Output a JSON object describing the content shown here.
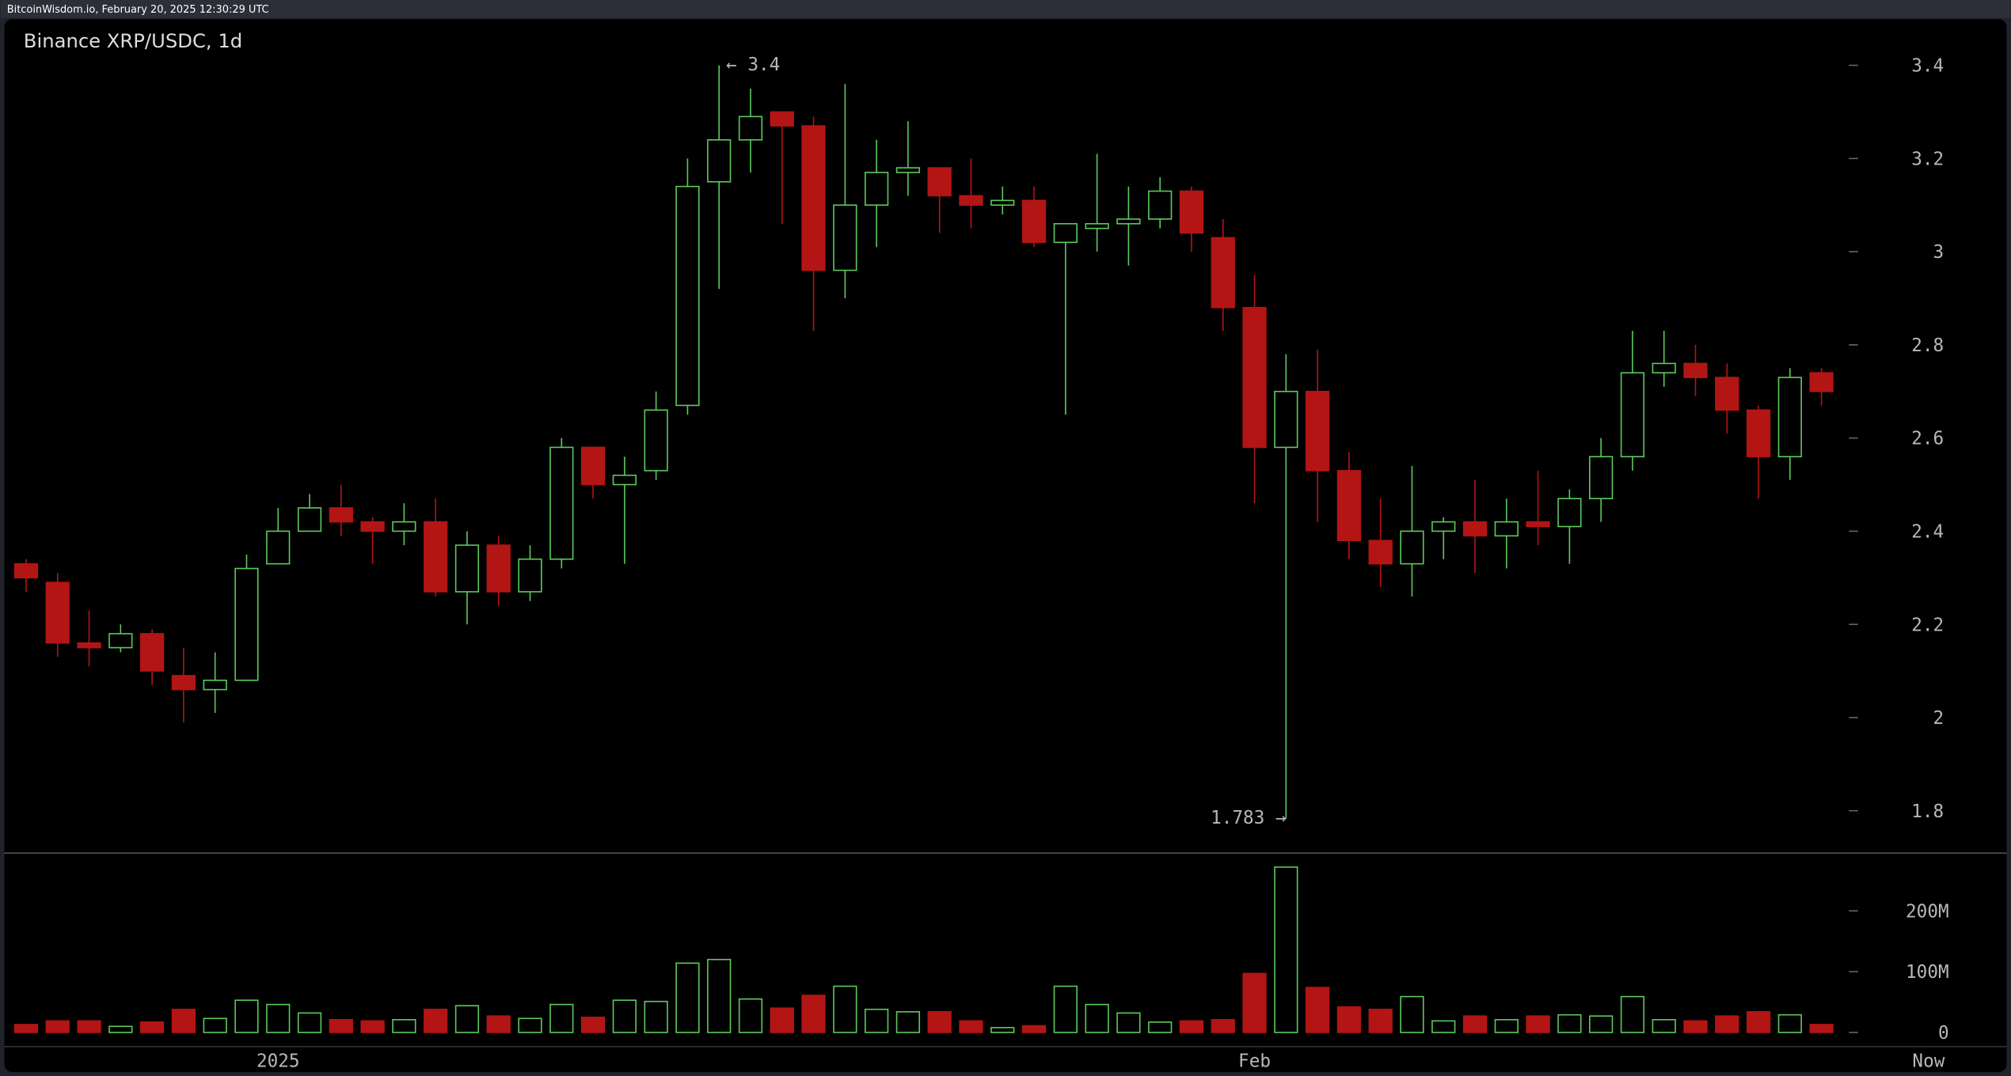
{
  "header": "BitcoinWisdom.io, February 20, 2025 12:30:29 UTC",
  "chart_data": {
    "type": "candlestick",
    "title": "Binance XRP/USDC, 1d",
    "annotations": [
      "← 3.4",
      "1.783 →"
    ],
    "xlim": [
      -0.69,
      63.0
    ],
    "xticks": [
      {
        "value": 8,
        "label": "2025"
      },
      {
        "value": 39,
        "label": "Feb"
      },
      {
        "value": 60.4,
        "label": "Now"
      }
    ],
    "ylim": [
      1.709,
      3.499
    ],
    "yticks": [
      1.8,
      2,
      2.2,
      2.4,
      2.6,
      2.8,
      3,
      3.2,
      3.4
    ],
    "up_color": "#5cc85c",
    "down_color": "#b31515",
    "open": [
      2.33,
      2.29,
      2.16,
      2.15,
      2.18,
      2.09,
      2.06,
      2.08,
      2.33,
      2.4,
      2.45,
      2.42,
      2.4,
      2.42,
      2.27,
      2.37,
      2.27,
      2.34,
      2.58,
      2.5,
      2.53,
      2.67,
      3.15,
      3.24,
      3.3,
      3.27,
      2.96,
      3.1,
      3.17,
      3.18,
      3.12,
      3.1,
      3.11,
      3.02,
      3.05,
      3.06,
      3.07,
      3.13,
      3.03,
      2.88,
      2.58,
      2.7,
      2.53,
      2.38,
      2.33,
      2.4,
      2.42,
      2.39,
      2.42,
      2.41,
      2.47,
      2.56,
      2.74,
      2.76,
      2.73,
      2.66,
      2.56,
      2.74
    ],
    "high": [
      2.34,
      2.31,
      2.23,
      2.2,
      2.19,
      2.15,
      2.14,
      2.35,
      2.45,
      2.48,
      2.5,
      2.43,
      2.46,
      2.47,
      2.4,
      2.39,
      2.37,
      2.6,
      2.58,
      2.56,
      2.7,
      3.2,
      3.4,
      3.35,
      3.3,
      3.29,
      3.36,
      3.24,
      3.28,
      3.18,
      3.2,
      3.14,
      3.14,
      3.06,
      3.21,
      3.14,
      3.16,
      3.14,
      3.07,
      2.95,
      2.78,
      2.79,
      2.57,
      2.47,
      2.54,
      2.43,
      2.51,
      2.47,
      2.53,
      2.49,
      2.6,
      2.83,
      2.83,
      2.8,
      2.76,
      2.67,
      2.75,
      2.75
    ],
    "low": [
      2.27,
      2.13,
      2.11,
      2.14,
      2.07,
      1.99,
      2.01,
      2.08,
      2.33,
      2.4,
      2.39,
      2.33,
      2.37,
      2.26,
      2.2,
      2.24,
      2.25,
      2.32,
      2.47,
      2.33,
      2.51,
      2.65,
      2.92,
      3.17,
      3.06,
      2.83,
      2.9,
      3.01,
      3.12,
      3.04,
      3.05,
      3.08,
      3.01,
      2.65,
      3.0,
      2.97,
      3.05,
      3.0,
      2.83,
      2.46,
      1.783,
      2.42,
      2.34,
      2.28,
      2.26,
      2.34,
      2.31,
      2.32,
      2.37,
      2.33,
      2.42,
      2.53,
      2.71,
      2.69,
      2.61,
      2.47,
      2.51,
      2.67
    ],
    "close": [
      2.3,
      2.16,
      2.15,
      2.18,
      2.1,
      2.06,
      2.08,
      2.32,
      2.4,
      2.45,
      2.42,
      2.4,
      2.42,
      2.27,
      2.37,
      2.27,
      2.34,
      2.58,
      2.5,
      2.52,
      2.66,
      3.14,
      3.24,
      3.29,
      3.27,
      2.96,
      3.1,
      3.17,
      3.18,
      3.12,
      3.1,
      3.11,
      3.02,
      3.06,
      3.06,
      3.07,
      3.13,
      3.04,
      2.88,
      2.58,
      2.7,
      2.53,
      2.38,
      2.33,
      2.4,
      2.42,
      2.39,
      2.42,
      2.41,
      2.47,
      2.56,
      2.74,
      2.76,
      2.73,
      2.66,
      2.56,
      2.73,
      2.7
    ],
    "volume": [
      13000000,
      19000000,
      19000000,
      10000000,
      17000000,
      38000000,
      23000000,
      53000000,
      46000000,
      32000000,
      21000000,
      19000000,
      21000000,
      38000000,
      44000000,
      27000000,
      23000000,
      46000000,
      25000000,
      53000000,
      51000000,
      114000000,
      120000000,
      55000000,
      40000000,
      61000000,
      76000000,
      38000000,
      34000000,
      34000000,
      19000000,
      8000000,
      11000000,
      76000000,
      46000000,
      32000000,
      17000000,
      19000000,
      21000000,
      97000000,
      272000000,
      74000000,
      42000000,
      38000000,
      59000000,
      19000000,
      27000000,
      21000000,
      27000000,
      29000000,
      27000000,
      59000000,
      21000000,
      19000000,
      27000000,
      34000000,
      29000000,
      13000000
    ],
    "vlim": [
      0,
      295000000
    ],
    "vticks": [
      0,
      {
        "value": 100000000,
        "label": "100M"
      },
      {
        "value": 200000000,
        "label": "200M"
      }
    ]
  }
}
